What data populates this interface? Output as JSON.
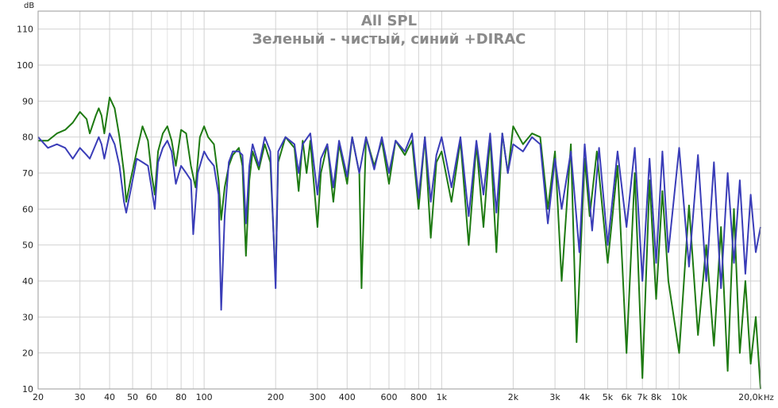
{
  "chart_data": {
    "type": "line",
    "title": "All SPL",
    "subtitle": "Зеленый - чистый, синий +DIRAC",
    "xlabel_unit": "Hz",
    "ylabel_unit": "dB",
    "x_scale": "log",
    "xlim": [
      20,
      22000
    ],
    "ylim": [
      10,
      115
    ],
    "grid": true,
    "y_ticks": [
      10,
      20,
      30,
      40,
      50,
      60,
      70,
      80,
      90,
      100,
      110
    ],
    "x_ticks": [
      {
        "value": 20,
        "label": "20"
      },
      {
        "value": 30,
        "label": "30"
      },
      {
        "value": 40,
        "label": "40"
      },
      {
        "value": 50,
        "label": "50"
      },
      {
        "value": 60,
        "label": "60"
      },
      {
        "value": 80,
        "label": "80"
      },
      {
        "value": 100,
        "label": "100"
      },
      {
        "value": 200,
        "label": "200"
      },
      {
        "value": 300,
        "label": "300"
      },
      {
        "value": 400,
        "label": "400"
      },
      {
        "value": 600,
        "label": "600"
      },
      {
        "value": 800,
        "label": "800"
      },
      {
        "value": 1000,
        "label": "1k"
      },
      {
        "value": 2000,
        "label": "2k"
      },
      {
        "value": 3000,
        "label": "3k"
      },
      {
        "value": 4000,
        "label": "4k"
      },
      {
        "value": 5000,
        "label": "5k"
      },
      {
        "value": 6000,
        "label": "6k"
      },
      {
        "value": 7000,
        "label": "7k"
      },
      {
        "value": 8000,
        "label": "8k"
      },
      {
        "value": 10000,
        "label": "10k"
      },
      {
        "value": 20000,
        "label": "20,0k"
      }
    ],
    "minor_x": [
      70,
      90,
      500,
      700,
      900,
      9000
    ],
    "series": [
      {
        "color": "#1e7a12",
        "points": [
          [
            20,
            79
          ],
          [
            22,
            79
          ],
          [
            24,
            81
          ],
          [
            26,
            82
          ],
          [
            28,
            84
          ],
          [
            30,
            87
          ],
          [
            32,
            85
          ],
          [
            33,
            81
          ],
          [
            35,
            86
          ],
          [
            36,
            88
          ],
          [
            37,
            86
          ],
          [
            38,
            81
          ],
          [
            40,
            91
          ],
          [
            42,
            88
          ],
          [
            44,
            80
          ],
          [
            46,
            70
          ],
          [
            47,
            62
          ],
          [
            49,
            68
          ],
          [
            52,
            76
          ],
          [
            55,
            83
          ],
          [
            58,
            79
          ],
          [
            60,
            70
          ],
          [
            62,
            64
          ],
          [
            64,
            76
          ],
          [
            67,
            81
          ],
          [
            70,
            83
          ],
          [
            73,
            79
          ],
          [
            76,
            72
          ],
          [
            80,
            82
          ],
          [
            84,
            81
          ],
          [
            88,
            72
          ],
          [
            92,
            66
          ],
          [
            96,
            80
          ],
          [
            100,
            83
          ],
          [
            104,
            80
          ],
          [
            110,
            78
          ],
          [
            115,
            68
          ],
          [
            118,
            57
          ],
          [
            122,
            66
          ],
          [
            127,
            72
          ],
          [
            132,
            75
          ],
          [
            140,
            77
          ],
          [
            145,
            72
          ],
          [
            150,
            47
          ],
          [
            155,
            68
          ],
          [
            160,
            76
          ],
          [
            170,
            71
          ],
          [
            180,
            78
          ],
          [
            190,
            73
          ],
          [
            200,
            40
          ],
          [
            205,
            73
          ],
          [
            220,
            80
          ],
          [
            240,
            77
          ],
          [
            250,
            65
          ],
          [
            260,
            79
          ],
          [
            270,
            70
          ],
          [
            280,
            79
          ],
          [
            300,
            55
          ],
          [
            310,
            70
          ],
          [
            330,
            78
          ],
          [
            350,
            62
          ],
          [
            370,
            78
          ],
          [
            400,
            67
          ],
          [
            420,
            80
          ],
          [
            450,
            70
          ],
          [
            460,
            38
          ],
          [
            480,
            80
          ],
          [
            520,
            72
          ],
          [
            560,
            79
          ],
          [
            600,
            67
          ],
          [
            640,
            79
          ],
          [
            700,
            75
          ],
          [
            750,
            79
          ],
          [
            800,
            60
          ],
          [
            850,
            80
          ],
          [
            900,
            52
          ],
          [
            950,
            73
          ],
          [
            1000,
            76
          ],
          [
            1100,
            62
          ],
          [
            1200,
            79
          ],
          [
            1300,
            50
          ],
          [
            1400,
            78
          ],
          [
            1500,
            55
          ],
          [
            1600,
            80
          ],
          [
            1700,
            48
          ],
          [
            1800,
            81
          ],
          [
            1900,
            70
          ],
          [
            2000,
            83
          ],
          [
            2200,
            78
          ],
          [
            2400,
            81
          ],
          [
            2600,
            80
          ],
          [
            2800,
            60
          ],
          [
            3000,
            76
          ],
          [
            3200,
            40
          ],
          [
            3500,
            78
          ],
          [
            3700,
            23
          ],
          [
            4000,
            74
          ],
          [
            4200,
            58
          ],
          [
            4500,
            76
          ],
          [
            5000,
            45
          ],
          [
            5500,
            72
          ],
          [
            6000,
            20
          ],
          [
            6500,
            70
          ],
          [
            7000,
            13
          ],
          [
            7500,
            68
          ],
          [
            8000,
            35
          ],
          [
            8500,
            65
          ],
          [
            9000,
            40
          ],
          [
            10000,
            20
          ],
          [
            11000,
            61
          ],
          [
            12000,
            25
          ],
          [
            13000,
            50
          ],
          [
            14000,
            22
          ],
          [
            15000,
            55
          ],
          [
            16000,
            15
          ],
          [
            17000,
            60
          ],
          [
            18000,
            20
          ],
          [
            19000,
            40
          ],
          [
            20000,
            17
          ],
          [
            21000,
            30
          ],
          [
            22000,
            10
          ]
        ]
      },
      {
        "color": "#3a3db8",
        "points": [
          [
            20,
            80
          ],
          [
            22,
            77
          ],
          [
            24,
            78
          ],
          [
            26,
            77
          ],
          [
            28,
            74
          ],
          [
            30,
            77
          ],
          [
            32,
            75
          ],
          [
            33,
            74
          ],
          [
            35,
            78
          ],
          [
            36,
            80
          ],
          [
            37,
            78
          ],
          [
            38,
            74
          ],
          [
            40,
            81
          ],
          [
            42,
            78
          ],
          [
            44,
            72
          ],
          [
            46,
            62
          ],
          [
            47,
            59
          ],
          [
            49,
            65
          ],
          [
            52,
            74
          ],
          [
            55,
            73
          ],
          [
            58,
            72
          ],
          [
            60,
            66
          ],
          [
            62,
            60
          ],
          [
            64,
            73
          ],
          [
            67,
            77
          ],
          [
            70,
            79
          ],
          [
            73,
            76
          ],
          [
            76,
            67
          ],
          [
            80,
            72
          ],
          [
            84,
            70
          ],
          [
            88,
            68
          ],
          [
            90,
            53
          ],
          [
            94,
            70
          ],
          [
            100,
            76
          ],
          [
            104,
            74
          ],
          [
            110,
            72
          ],
          [
            115,
            64
          ],
          [
            118,
            32
          ],
          [
            122,
            58
          ],
          [
            127,
            73
          ],
          [
            132,
            76
          ],
          [
            140,
            76
          ],
          [
            145,
            75
          ],
          [
            150,
            56
          ],
          [
            155,
            72
          ],
          [
            160,
            78
          ],
          [
            170,
            72
          ],
          [
            180,
            80
          ],
          [
            190,
            76
          ],
          [
            200,
            38
          ],
          [
            205,
            76
          ],
          [
            220,
            80
          ],
          [
            240,
            78
          ],
          [
            250,
            70
          ],
          [
            260,
            78
          ],
          [
            280,
            81
          ],
          [
            300,
            64
          ],
          [
            310,
            74
          ],
          [
            330,
            78
          ],
          [
            350,
            66
          ],
          [
            370,
            79
          ],
          [
            400,
            69
          ],
          [
            420,
            80
          ],
          [
            450,
            70
          ],
          [
            480,
            80
          ],
          [
            520,
            71
          ],
          [
            560,
            80
          ],
          [
            600,
            70
          ],
          [
            640,
            79
          ],
          [
            700,
            76
          ],
          [
            750,
            81
          ],
          [
            800,
            63
          ],
          [
            850,
            80
          ],
          [
            900,
            62
          ],
          [
            950,
            75
          ],
          [
            1000,
            80
          ],
          [
            1100,
            66
          ],
          [
            1200,
            80
          ],
          [
            1300,
            58
          ],
          [
            1400,
            79
          ],
          [
            1500,
            64
          ],
          [
            1600,
            81
          ],
          [
            1700,
            59
          ],
          [
            1800,
            81
          ],
          [
            1900,
            70
          ],
          [
            2000,
            78
          ],
          [
            2200,
            76
          ],
          [
            2400,
            80
          ],
          [
            2600,
            78
          ],
          [
            2800,
            56
          ],
          [
            3000,
            74
          ],
          [
            3200,
            60
          ],
          [
            3500,
            76
          ],
          [
            3800,
            48
          ],
          [
            4000,
            78
          ],
          [
            4300,
            54
          ],
          [
            4600,
            77
          ],
          [
            5000,
            50
          ],
          [
            5500,
            76
          ],
          [
            6000,
            55
          ],
          [
            6500,
            77
          ],
          [
            7000,
            40
          ],
          [
            7500,
            74
          ],
          [
            8000,
            45
          ],
          [
            8500,
            76
          ],
          [
            9000,
            48
          ],
          [
            10000,
            77
          ],
          [
            11000,
            44
          ],
          [
            12000,
            75
          ],
          [
            13000,
            40
          ],
          [
            14000,
            73
          ],
          [
            15000,
            38
          ],
          [
            16000,
            70
          ],
          [
            17000,
            45
          ],
          [
            18000,
            68
          ],
          [
            19000,
            42
          ],
          [
            20000,
            64
          ],
          [
            21000,
            48
          ],
          [
            22000,
            55
          ]
        ]
      }
    ]
  }
}
